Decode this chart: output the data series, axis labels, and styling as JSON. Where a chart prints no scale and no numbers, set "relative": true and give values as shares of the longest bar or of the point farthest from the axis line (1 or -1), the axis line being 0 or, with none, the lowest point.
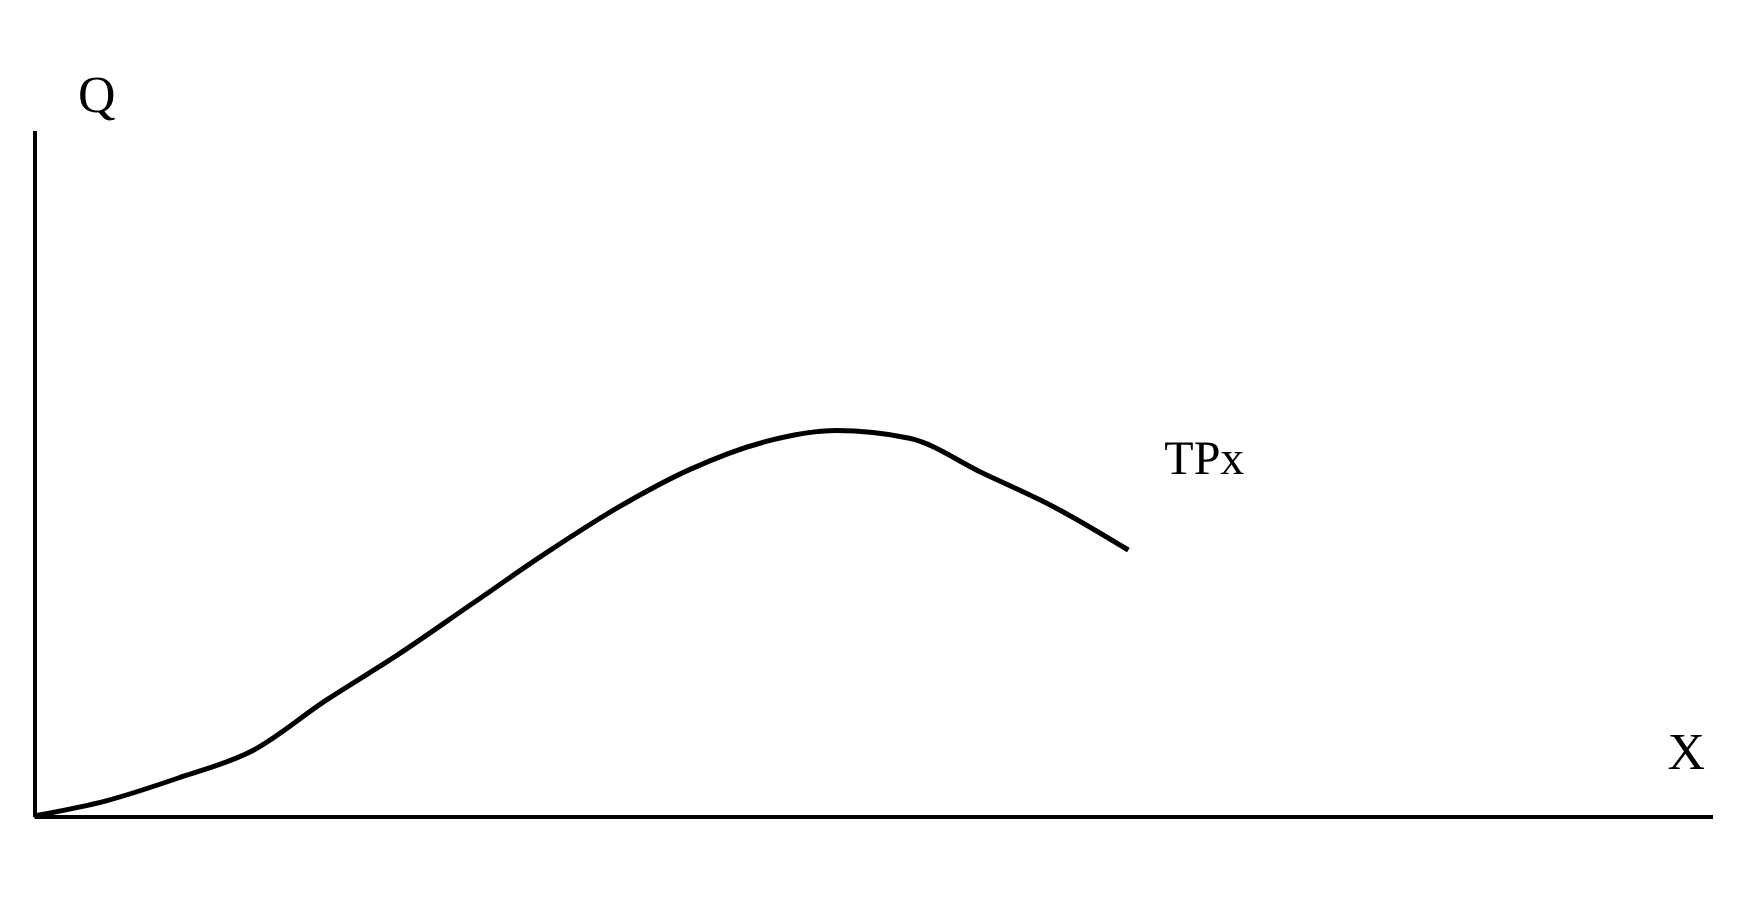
{
  "chart_data": {
    "type": "line",
    "relative": true,
    "xlabel": "X",
    "annotations": [
      "Q"
    ],
    "categories": [
      null,
      null,
      null,
      null,
      null,
      null,
      null,
      null,
      null,
      null,
      null,
      null,
      null,
      null,
      null,
      null,
      null,
      null,
      null,
      null,
      null,
      null,
      null,
      null
    ],
    "series": [
      {
        "name": "TPx",
        "color": "#000000",
        "values": [
          0,
          0.04,
          0.1,
          0.17,
          0.3,
          0.42,
          0.55,
          0.68,
          0.8,
          0.9,
          0.97,
          1.0,
          0.98,
          0.89,
          0.8,
          0.69,
          null,
          null,
          null,
          null,
          null,
          null,
          null,
          null
        ]
      }
    ],
    "grid": false,
    "tick_labels": false,
    "marker": "none",
    "line_style": "solid"
  }
}
